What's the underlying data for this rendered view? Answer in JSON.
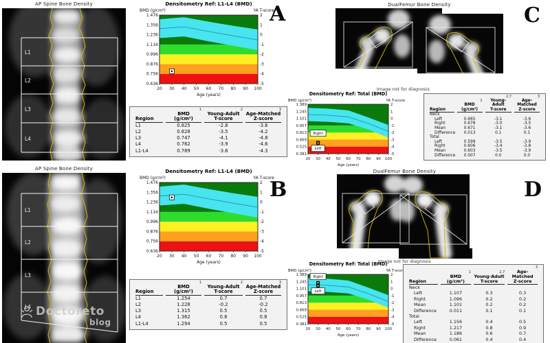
{
  "panel_labels": {
    "A": "A",
    "B": "B",
    "C": "C",
    "D": "D"
  },
  "scans": {
    "spine_title": "AP Spine Bone Density",
    "femur_title": "DualFemur Bone Density",
    "disclaimer": "Image not for diagnosis",
    "spine_regions": [
      "L1",
      "L2",
      "L3",
      "L4"
    ]
  },
  "watermark": {
    "name": "Doctoreto",
    "sub": "blog"
  },
  "chart_data": [
    {
      "id": "A",
      "type": "area",
      "title": "Densitometry Ref: L1-L4 (BMD)",
      "ylabel": "BMD (g/cm²)",
      "ylabel_right": "YA T-score",
      "xlabel": "Age (years)",
      "xlim": [
        20,
        100
      ],
      "x_ticks": [
        20,
        30,
        40,
        50,
        60,
        70,
        80,
        90,
        100
      ],
      "ylim": [
        0.636,
        1.476
      ],
      "y_ticks": [
        1.476,
        1.356,
        1.236,
        1.116,
        0.996,
        0.876,
        0.756,
        0.636
      ],
      "t_ticks": [
        2,
        1,
        0,
        -1,
        -2,
        -3,
        -4,
        -5
      ],
      "bands": [
        {
          "color": "#ee1111",
          "from": 0.636,
          "to": 0.756
        },
        {
          "color": "#ffa01e",
          "from": 0.756,
          "to": 0.876
        },
        {
          "color": "#fff022",
          "from": 0.876,
          "to": 0.996
        },
        {
          "color": "#2edc2e",
          "from": 0.996,
          "to": 1.116
        },
        {
          "color": "#0a7a0a",
          "from": 1.116,
          "to": 1.476
        }
      ],
      "ref_band": {
        "color": "#48e4f0",
        "line_color": "#1b8f9e",
        "upper": [
          [
            20,
            1.425
          ],
          [
            40,
            1.45
          ],
          [
            60,
            1.395
          ],
          [
            80,
            1.345
          ],
          [
            100,
            1.3
          ]
        ],
        "lower": [
          [
            20,
            1.195
          ],
          [
            40,
            1.215
          ],
          [
            60,
            1.155
          ],
          [
            80,
            1.1
          ],
          [
            100,
            1.045
          ]
        ]
      },
      "marker_style": "light",
      "markers": [
        {
          "x": 30,
          "y": 0.789
        }
      ],
      "marker_labels": []
    },
    {
      "id": "B",
      "type": "area",
      "title": "Densitometry Ref: L1-L4 (BMD)",
      "ylabel": "BMD (g/cm²)",
      "ylabel_right": "YA T-score",
      "xlabel": "Age (years)",
      "xlim": [
        20,
        100
      ],
      "x_ticks": [
        20,
        30,
        40,
        50,
        60,
        70,
        80,
        90,
        100
      ],
      "ylim": [
        0.636,
        1.476
      ],
      "y_ticks": [
        1.476,
        1.356,
        1.236,
        1.116,
        0.996,
        0.876,
        0.756,
        0.636
      ],
      "t_ticks": [
        2,
        1,
        0,
        -1,
        -2,
        -3,
        -4,
        -5
      ],
      "bands": [
        {
          "color": "#ee1111",
          "from": 0.636,
          "to": 0.756
        },
        {
          "color": "#ffa01e",
          "from": 0.756,
          "to": 0.876
        },
        {
          "color": "#fff022",
          "from": 0.876,
          "to": 0.996
        },
        {
          "color": "#2edc2e",
          "from": 0.996,
          "to": 1.116
        },
        {
          "color": "#0a7a0a",
          "from": 1.116,
          "to": 1.476
        }
      ],
      "ref_band": {
        "color": "#48e4f0",
        "line_color": "#1b8f9e",
        "upper": [
          [
            20,
            1.425
          ],
          [
            40,
            1.45
          ],
          [
            60,
            1.395
          ],
          [
            80,
            1.345
          ],
          [
            100,
            1.3
          ]
        ],
        "lower": [
          [
            20,
            1.195
          ],
          [
            40,
            1.215
          ],
          [
            60,
            1.155
          ],
          [
            80,
            1.1
          ],
          [
            100,
            1.045
          ]
        ]
      },
      "marker_style": "light",
      "markers": [
        {
          "x": 30,
          "y": 1.294
        }
      ],
      "marker_labels": []
    },
    {
      "id": "C",
      "type": "area",
      "title": "Densitometry Ref: Total (BMD)",
      "ylabel": "BMD (g/cm²)",
      "ylabel_right": "YA T-score",
      "xlabel": "Age (years)",
      "xlim": [
        20,
        100
      ],
      "x_ticks": [
        20,
        30,
        40,
        50,
        60,
        70,
        80,
        90,
        100
      ],
      "ylim": [
        0.381,
        1.389
      ],
      "y_ticks": [
        1.389,
        1.245,
        1.101,
        0.957,
        0.813,
        0.669,
        0.525,
        0.381
      ],
      "t_ticks": [
        2,
        1,
        0,
        -1,
        -2,
        -3,
        -4,
        -5
      ],
      "bands": [
        {
          "color": "#ee1111",
          "from": 0.381,
          "to": 0.525
        },
        {
          "color": "#ffa01e",
          "from": 0.525,
          "to": 0.669
        },
        {
          "color": "#fff022",
          "from": 0.669,
          "to": 0.813
        },
        {
          "color": "#2edc2e",
          "from": 0.813,
          "to": 0.957
        },
        {
          "color": "#0a7a0a",
          "from": 0.957,
          "to": 1.389
        }
      ],
      "ref_band": {
        "color": "#48e4f0",
        "line_color": "#1b8f9e",
        "upper": [
          [
            20,
            1.315
          ],
          [
            40,
            1.3
          ],
          [
            60,
            1.265
          ],
          [
            80,
            1.12
          ],
          [
            100,
            0.965
          ]
        ],
        "lower": [
          [
            20,
            1.045
          ],
          [
            40,
            1.03
          ],
          [
            60,
            1.0
          ],
          [
            80,
            0.875
          ],
          [
            100,
            0.705
          ]
        ]
      },
      "marker_style": "dark",
      "markers": [
        {
          "x": 30,
          "y": 0.606
        },
        {
          "x": 30,
          "y": 0.599
        }
      ],
      "marker_labels": [
        {
          "text": "Right",
          "x": 30,
          "y": 0.8
        },
        {
          "text": "Left",
          "x": 30,
          "y": 0.49
        }
      ]
    },
    {
      "id": "D",
      "type": "area",
      "title": "Densitometry Ref: Total (BMD)",
      "ylabel": "BMD (g/cm²)",
      "ylabel_right": "YA T-score",
      "xlabel": "Age (years)",
      "xlim": [
        20,
        100
      ],
      "x_ticks": [
        20,
        30,
        40,
        50,
        60,
        70,
        80,
        90,
        100
      ],
      "ylim": [
        0.381,
        1.389
      ],
      "y_ticks": [
        1.389,
        1.245,
        1.101,
        0.957,
        0.813,
        0.669,
        0.525,
        0.381
      ],
      "t_ticks": [
        2,
        1,
        0,
        -1,
        -2,
        -3,
        -4,
        -5
      ],
      "bands": [
        {
          "color": "#ee1111",
          "from": 0.381,
          "to": 0.525
        },
        {
          "color": "#ffa01e",
          "from": 0.525,
          "to": 0.669
        },
        {
          "color": "#fff022",
          "from": 0.669,
          "to": 0.813
        },
        {
          "color": "#2edc2e",
          "from": 0.813,
          "to": 0.957
        },
        {
          "color": "#0a7a0a",
          "from": 0.957,
          "to": 1.389
        }
      ],
      "ref_band": {
        "color": "#48e4f0",
        "line_color": "#1b8f9e",
        "upper": [
          [
            20,
            1.315
          ],
          [
            40,
            1.3
          ],
          [
            60,
            1.265
          ],
          [
            80,
            1.12
          ],
          [
            100,
            0.965
          ]
        ],
        "lower": [
          [
            20,
            1.045
          ],
          [
            40,
            1.03
          ],
          [
            60,
            1.0
          ],
          [
            80,
            0.875
          ],
          [
            100,
            0.705
          ]
        ]
      },
      "marker_style": "dark",
      "markers": [
        {
          "x": 30,
          "y": 1.217
        },
        {
          "x": 30,
          "y": 1.156
        }
      ],
      "marker_labels": [
        {
          "text": "Right",
          "x": 30,
          "y": 1.345
        },
        {
          "text": "Left",
          "x": 30,
          "y": 1.05
        }
      ]
    }
  ],
  "tables": {
    "A": {
      "columns": [
        {
          "label": "Region",
          "sup": "",
          "sub": ""
        },
        {
          "label": "BMD",
          "sub": "(g/cm²)",
          "sup": "1"
        },
        {
          "label": "Young-Adult",
          "sub": "T-score",
          "sup": "2"
        },
        {
          "label": "Age-Matched",
          "sub": "Z-score",
          "sup": "3"
        }
      ],
      "rows": [
        {
          "region": "L1",
          "values": [
            "0.825",
            "-2.8",
            "-3.6"
          ]
        },
        {
          "region": "L2",
          "values": [
            "0.828",
            "-3.5",
            "-4.2"
          ]
        },
        {
          "region": "L3",
          "values": [
            "0.747",
            "-4.1",
            "-4.8"
          ]
        },
        {
          "region": "L4",
          "values": [
            "0.762",
            "-3.9",
            "-4.6"
          ]
        },
        {
          "region": "L1-L4",
          "values": [
            "0.789",
            "-3.6",
            "-4.3"
          ]
        }
      ]
    },
    "B": {
      "columns": [
        {
          "label": "Region",
          "sup": "",
          "sub": ""
        },
        {
          "label": "BMD",
          "sub": "(g/cm²)",
          "sup": "1"
        },
        {
          "label": "Young-Adult",
          "sub": "T-score",
          "sup": "2"
        },
        {
          "label": "Age-Matched",
          "sub": "Z-score",
          "sup": "3"
        }
      ],
      "rows": [
        {
          "region": "L1",
          "values": [
            "1.254",
            "0.7",
            "0.7"
          ]
        },
        {
          "region": "L2",
          "values": [
            "1.228",
            "-0.2",
            "-0.2"
          ]
        },
        {
          "region": "L3",
          "values": [
            "1.315",
            "0.5",
            "0.5"
          ]
        },
        {
          "region": "L4",
          "values": [
            "1.362",
            "0.8",
            "0.8"
          ]
        },
        {
          "region": "L1-L4",
          "values": [
            "1.294",
            "0.5",
            "0.5"
          ]
        }
      ]
    },
    "C": {
      "columns": [
        {
          "label": "Region",
          "sup": "",
          "sub": ""
        },
        {
          "label": "BMD",
          "sub": "(g/cm²)",
          "sup": "1"
        },
        {
          "label": "Young-Adult",
          "sub": "T-score",
          "sup": "2,7"
        },
        {
          "label": "Age-Matched",
          "sub": "Z-score",
          "sup": "3"
        }
      ],
      "rows": [
        {
          "region": "Neck",
          "section": true,
          "values": []
        },
        {
          "region": "Left",
          "indent": true,
          "values": [
            "0.665",
            "-3.1",
            "-3.6"
          ]
        },
        {
          "region": "Right",
          "indent": true,
          "values": [
            "0.678",
            "-3.0",
            "-3.5"
          ]
        },
        {
          "region": "Mean",
          "indent": true,
          "values": [
            "0.671",
            "-3.1",
            "-3.6"
          ]
        },
        {
          "region": "Difference",
          "indent": true,
          "values": [
            "0.013",
            "0.1",
            "0.1"
          ]
        },
        {
          "region": "Total",
          "section": true,
          "values": []
        },
        {
          "region": "Left",
          "indent": true,
          "values": [
            "0.599",
            "-3.5",
            "-3.9"
          ]
        },
        {
          "region": "Right",
          "indent": true,
          "values": [
            "0.606",
            "-3.4",
            "-3.8"
          ]
        },
        {
          "region": "Mean",
          "indent": true,
          "values": [
            "0.603",
            "-3.5",
            "-3.9"
          ]
        },
        {
          "region": "Difference",
          "indent": true,
          "values": [
            "0.007",
            "0.0",
            "0.0"
          ]
        }
      ]
    },
    "D": {
      "columns": [
        {
          "label": "Region",
          "sup": "",
          "sub": ""
        },
        {
          "label": "BMD",
          "sub": "(g/cm²)",
          "sup": "1"
        },
        {
          "label": "Young-Adult",
          "sub": "T-score",
          "sup": "2,7"
        },
        {
          "label": "Age-Matched",
          "sub": "Z-score",
          "sup": "3"
        }
      ],
      "rows": [
        {
          "region": "Neck",
          "section": true,
          "values": []
        },
        {
          "region": "Left",
          "indent": true,
          "values": [
            "1.107",
            "0.3",
            "0.3"
          ]
        },
        {
          "region": "Right",
          "indent": true,
          "values": [
            "1.096",
            "0.2",
            "0.2"
          ]
        },
        {
          "region": "Mean",
          "indent": true,
          "values": [
            "1.101",
            "0.2",
            "0.2"
          ]
        },
        {
          "region": "Difference",
          "indent": true,
          "values": [
            "0.011",
            "0.1",
            "0.1"
          ]
        },
        {
          "region": "Total",
          "section": true,
          "values": []
        },
        {
          "region": "Left",
          "indent": true,
          "values": [
            "1.156",
            "0.4",
            "0.5"
          ]
        },
        {
          "region": "Right",
          "indent": true,
          "values": [
            "1.217",
            "0.8",
            "0.9"
          ]
        },
        {
          "region": "Mean",
          "indent": true,
          "values": [
            "1.186",
            "0.6",
            "0.7"
          ]
        },
        {
          "region": "Difference",
          "indent": true,
          "values": [
            "0.061",
            "0.4",
            "0.4"
          ]
        }
      ]
    }
  }
}
